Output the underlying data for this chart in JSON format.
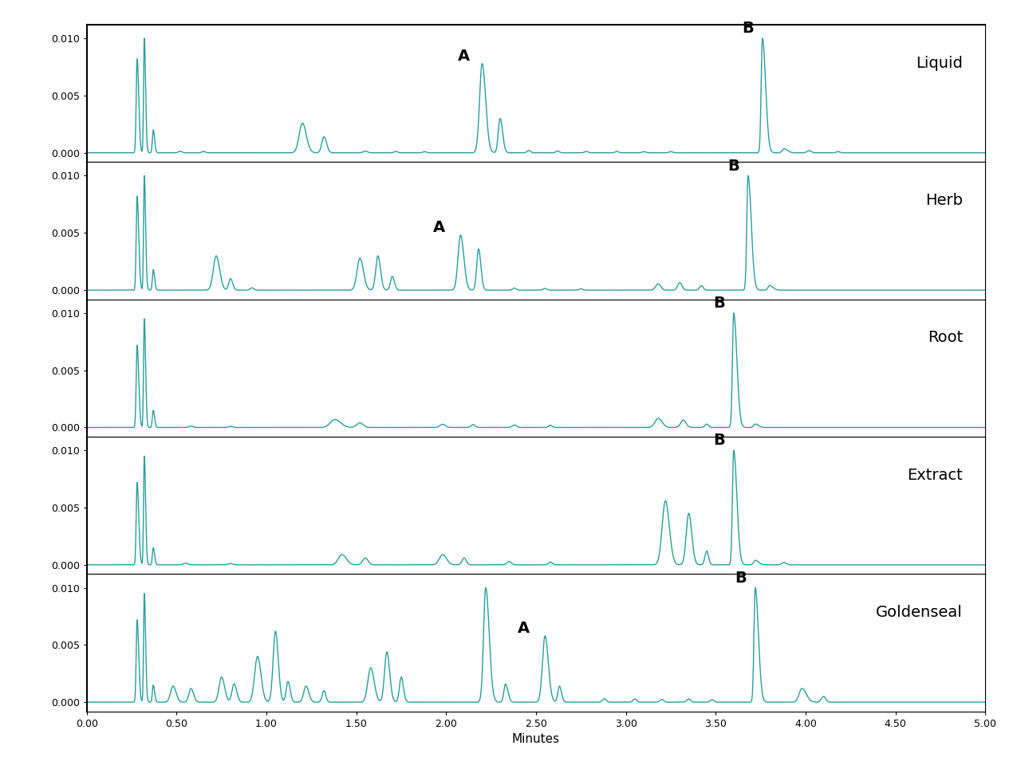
{
  "samples": [
    "Liquid",
    "Herb",
    "Root",
    "Extract",
    "Goldenseal"
  ],
  "line_color": "#2a9d9d",
  "line_width": 1.0,
  "ylim": [
    -0.0008,
    0.0112
  ],
  "xlim": [
    0.0,
    5.0
  ],
  "yticks": [
    0.0,
    0.005,
    0.01
  ],
  "xticks": [
    0.0,
    0.5,
    1.0,
    1.5,
    2.0,
    2.5,
    3.0,
    3.5,
    4.0,
    4.5,
    5.0
  ],
  "xlabel": "Minutes",
  "background": "#ffffff",
  "label_fontsize": 11,
  "tick_fontsize": 9,
  "annotation_fontsize": 14,
  "sample_label_fontsize": 14,
  "annotations": [
    [
      [
        "A",
        2.22,
        0.0078
      ],
      [
        "B",
        3.76,
        0.0102
      ]
    ],
    [
      [
        "A",
        2.08,
        0.0048
      ],
      [
        "B",
        3.68,
        0.0102
      ]
    ],
    [
      [
        "B",
        3.6,
        0.0102
      ]
    ],
    [
      [
        "B",
        3.6,
        0.0102
      ]
    ],
    [
      [
        "A",
        2.55,
        0.0058
      ],
      [
        "B",
        3.72,
        0.0102
      ]
    ]
  ]
}
